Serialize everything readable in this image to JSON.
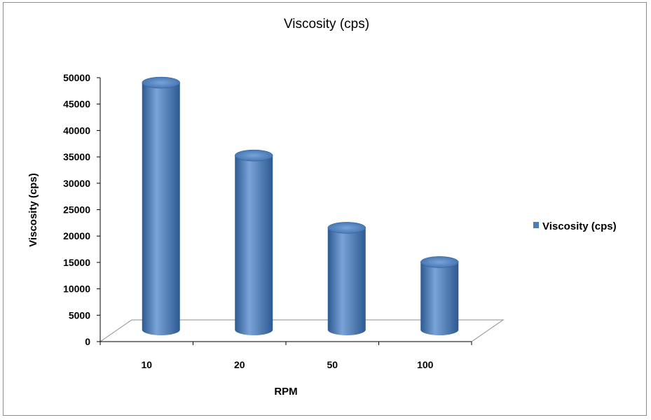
{
  "chart_data": {
    "type": "bar",
    "title": "Viscosity (cps)",
    "xlabel": "RPM",
    "ylabel": "Viscosity (cps)",
    "categories": [
      "10",
      "20",
      "50",
      "100"
    ],
    "series": [
      {
        "name": "Viscosity (cps)",
        "values": [
          49000,
          35200,
          21500,
          15000
        ]
      }
    ],
    "ylim": [
      0,
      50000
    ],
    "yticks": [
      "0",
      "5000",
      "10000",
      "15000",
      "20000",
      "25000",
      "30000",
      "35000",
      "40000",
      "45000",
      "50000"
    ],
    "legend_position": "right",
    "grid": false,
    "style": "3d-cylinder",
    "colors": {
      "series": "#4a7ebb",
      "series_dark": "#2c5a91",
      "series_light": "#7aa3d8",
      "series_top": "#3d6fad",
      "axis": "#000000",
      "floor": "#8c8c8c"
    }
  }
}
